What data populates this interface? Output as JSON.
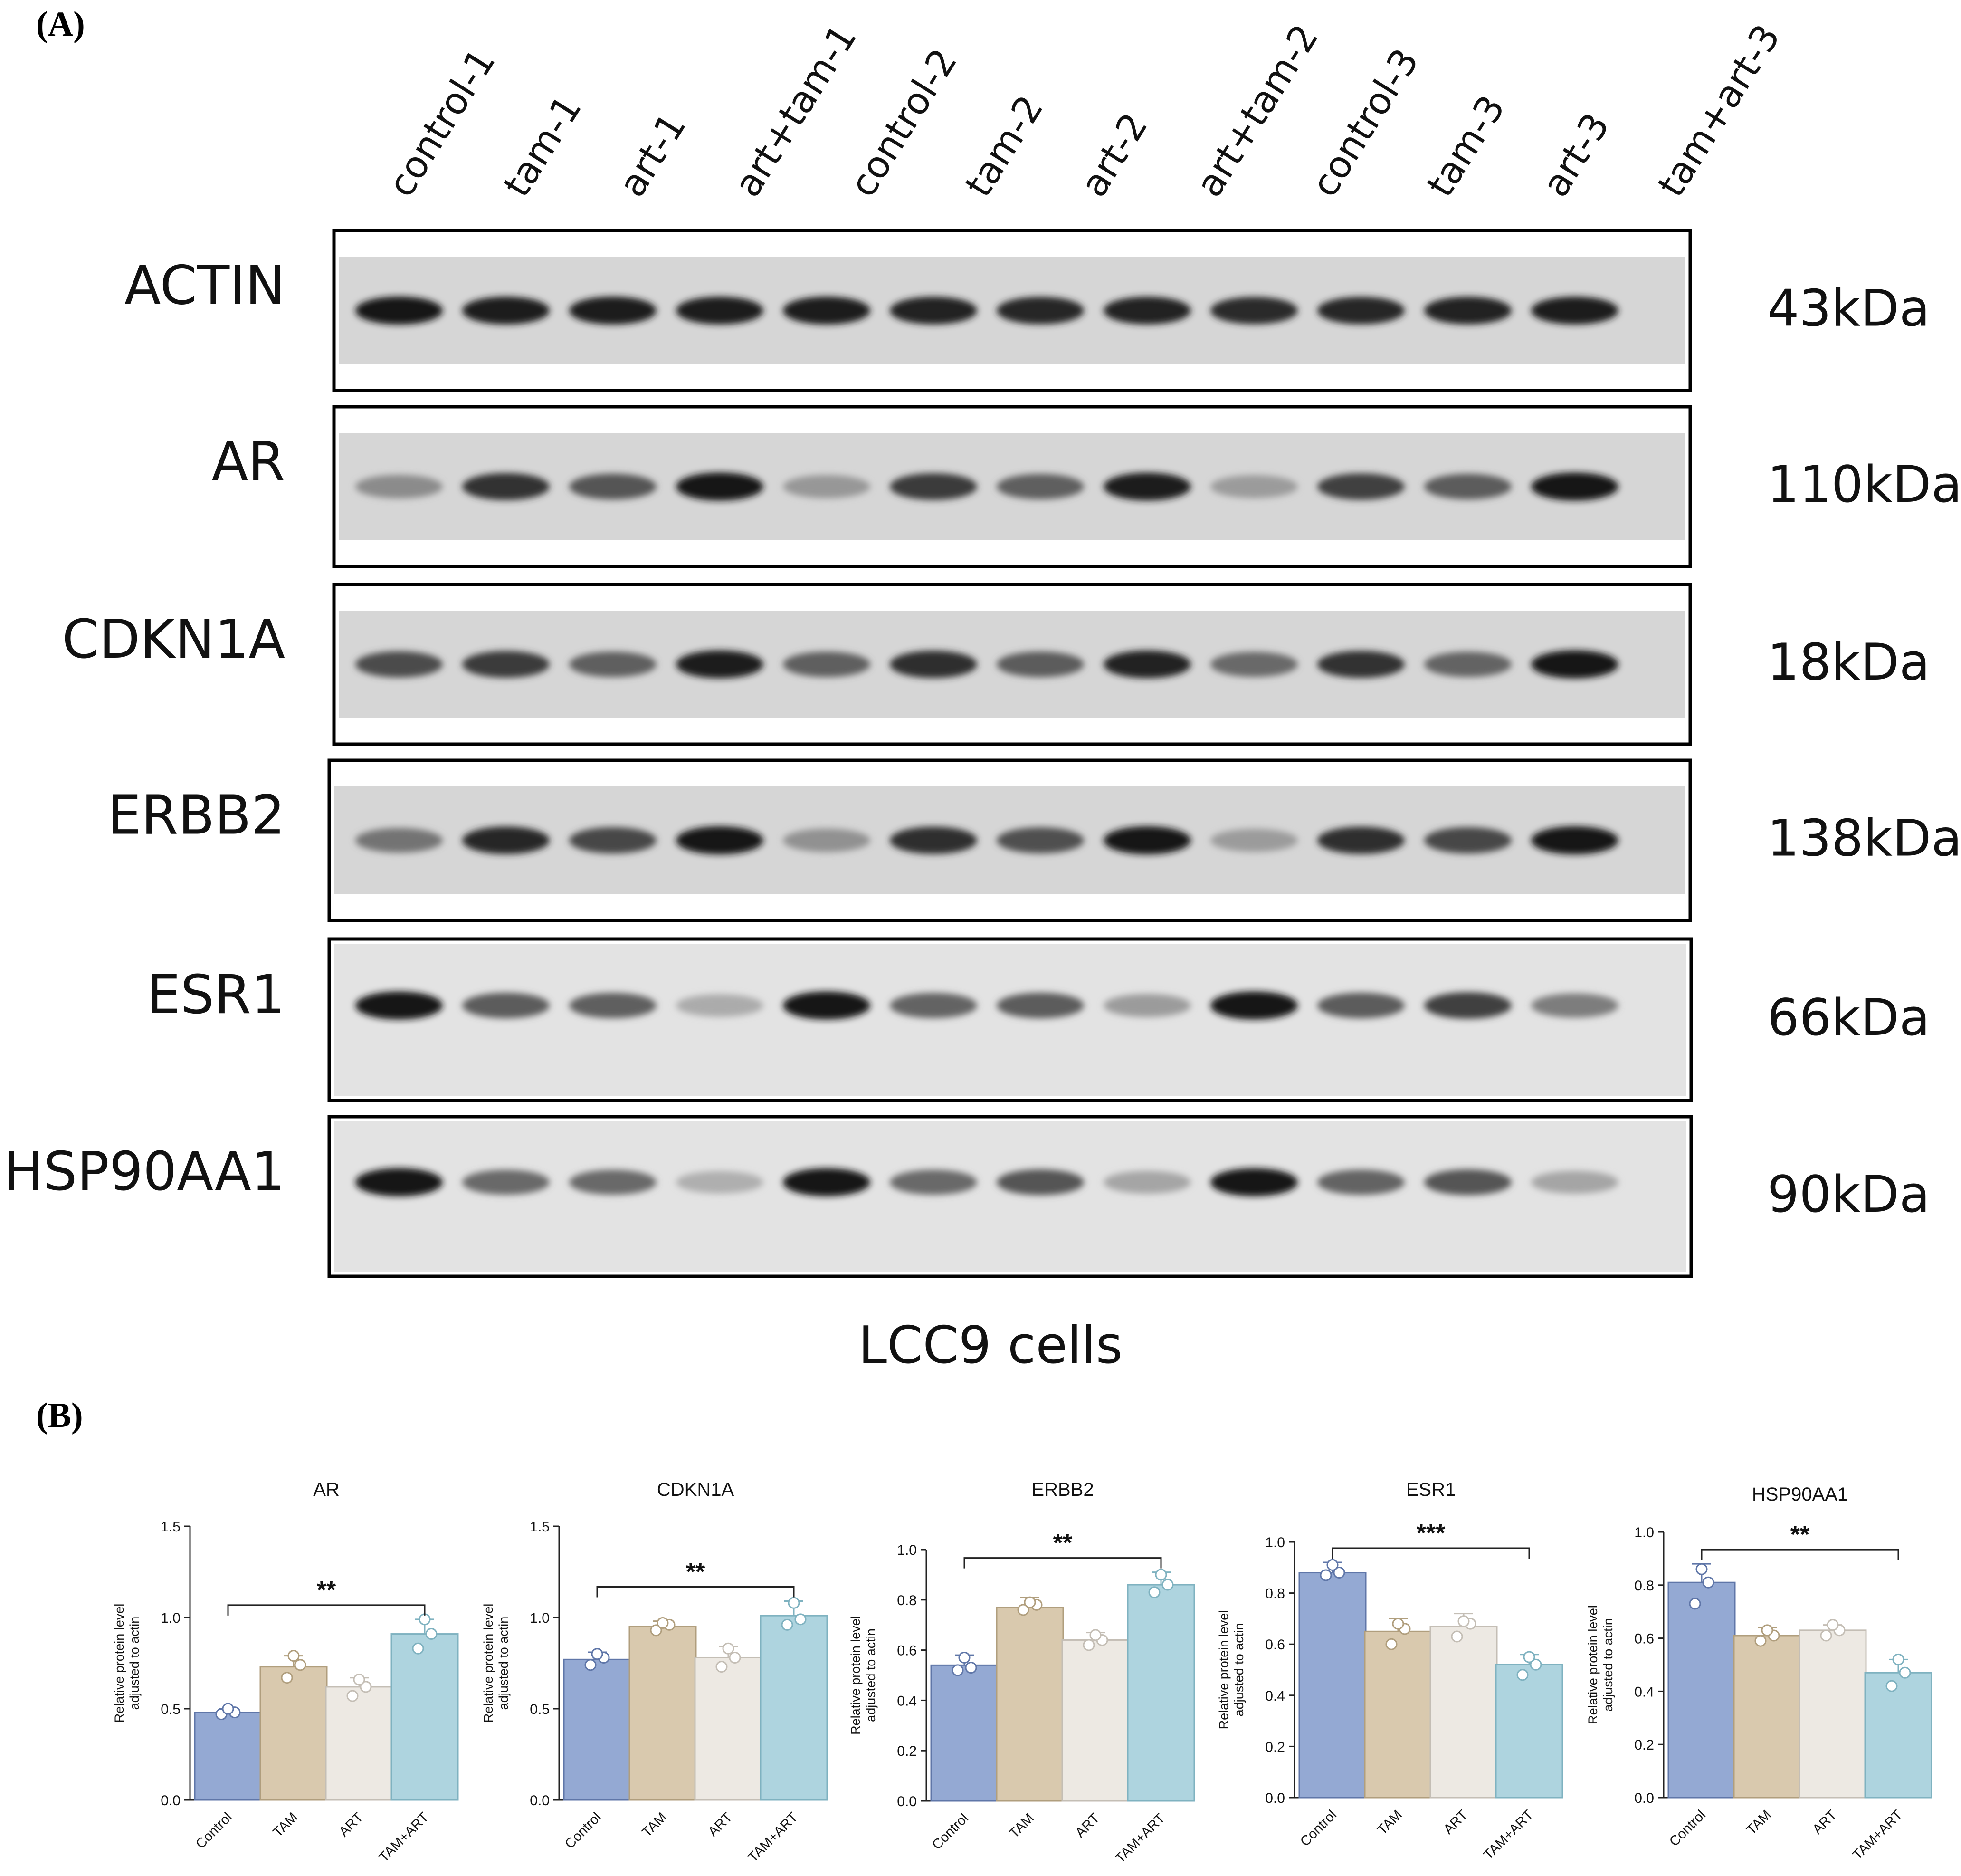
{
  "panel_a": {
    "label": "(A)",
    "lanes": [
      "control-1",
      "tam-1",
      "art-1",
      "art+tam-1",
      "control-2",
      "tam-2",
      "art-2",
      "art+tam-2",
      "control-3",
      "tam-3",
      "art-3",
      "tam+art-3"
    ],
    "caption": "LCC9 cells",
    "blots": [
      {
        "protein": "ACTIN",
        "size": "43kDa",
        "intensity": [
          0.95,
          0.92,
          0.94,
          0.92,
          0.93,
          0.9,
          0.88,
          0.9,
          0.86,
          0.88,
          0.9,
          0.92
        ]
      },
      {
        "protein": "AR",
        "size": "110kDa",
        "intensity": [
          0.38,
          0.82,
          0.65,
          0.95,
          0.32,
          0.78,
          0.6,
          0.92,
          0.3,
          0.75,
          0.62,
          0.95
        ]
      },
      {
        "protein": "CDKN1A",
        "size": "18kDa",
        "intensity": [
          0.7,
          0.78,
          0.6,
          0.92,
          0.6,
          0.85,
          0.62,
          0.9,
          0.55,
          0.82,
          0.58,
          0.95
        ]
      },
      {
        "protein": "ERBB2",
        "size": "138kDa",
        "intensity": [
          0.5,
          0.88,
          0.72,
          0.95,
          0.35,
          0.85,
          0.68,
          0.95,
          0.3,
          0.85,
          0.72,
          0.95
        ]
      },
      {
        "protein": "ESR1",
        "size": "66kDa",
        "intensity": [
          0.95,
          0.62,
          0.6,
          0.22,
          0.95,
          0.58,
          0.62,
          0.3,
          0.95,
          0.62,
          0.75,
          0.45
        ]
      },
      {
        "protein": "HSP90AA1",
        "size": "90kDa",
        "intensity": [
          0.98,
          0.55,
          0.55,
          0.2,
          0.95,
          0.55,
          0.65,
          0.25,
          0.95,
          0.58,
          0.65,
          0.25
        ]
      }
    ]
  },
  "panel_b": {
    "label": "(B)"
  },
  "chart_data": [
    {
      "type": "bar",
      "title": "AR",
      "categories": [
        "Control",
        "TAM",
        "ART",
        "TAM+ART"
      ],
      "values": [
        0.48,
        0.73,
        0.62,
        0.91
      ],
      "points": [
        [
          0.47,
          0.48,
          0.5
        ],
        [
          0.67,
          0.74,
          0.79
        ],
        [
          0.57,
          0.62,
          0.66
        ],
        [
          0.83,
          0.91,
          0.99
        ]
      ],
      "errors": [
        0.02,
        0.06,
        0.05,
        0.08
      ],
      "ylim": [
        0,
        1.5
      ],
      "yticks": [
        0.0,
        0.5,
        1.0,
        1.5
      ],
      "ylabel": [
        "Relative protein level",
        "adjusted to actin"
      ],
      "significance": "**",
      "colors": [
        "#94a9d3",
        "#d9c9ae",
        "#ede9e3",
        "#aed4df"
      ]
    },
    {
      "type": "bar",
      "title": "CDKN1A",
      "categories": [
        "Control",
        "TAM",
        "ART",
        "TAM+ART"
      ],
      "values": [
        0.77,
        0.95,
        0.78,
        1.01
      ],
      "points": [
        [
          0.74,
          0.78,
          0.8
        ],
        [
          0.93,
          0.96,
          0.97
        ],
        [
          0.73,
          0.78,
          0.83
        ],
        [
          0.96,
          0.99,
          1.08
        ]
      ],
      "errors": [
        0.04,
        0.03,
        0.06,
        0.08
      ],
      "ylim": [
        0,
        1.5
      ],
      "yticks": [
        0.0,
        0.5,
        1.0,
        1.5
      ],
      "ylabel": [
        "Relative protein level",
        "adjusted to actin"
      ],
      "significance": "**",
      "colors": [
        "#94a9d3",
        "#d9c9ae",
        "#ede9e3",
        "#aed4df"
      ]
    },
    {
      "type": "bar",
      "title": "ERBB2",
      "categories": [
        "Control",
        "TAM",
        "ART",
        "TAM+ART"
      ],
      "values": [
        0.54,
        0.77,
        0.64,
        0.86
      ],
      "points": [
        [
          0.52,
          0.53,
          0.57
        ],
        [
          0.76,
          0.78,
          0.79
        ],
        [
          0.62,
          0.64,
          0.66
        ],
        [
          0.83,
          0.86,
          0.9
        ]
      ],
      "errors": [
        0.04,
        0.04,
        0.03,
        0.05
      ],
      "ylim": [
        0,
        1.0
      ],
      "yticks": [
        0.0,
        0.2,
        0.4,
        0.6,
        0.8,
        1.0
      ],
      "ylabel": [
        "Relative protein level",
        "adjusted to actin"
      ],
      "significance": "**",
      "colors": [
        "#94a9d3",
        "#d9c9ae",
        "#ede9e3",
        "#aed4df"
      ]
    },
    {
      "type": "bar",
      "title": "ESR1",
      "categories": [
        "Control",
        "TAM",
        "ART",
        "TAM+ART"
      ],
      "values": [
        0.88,
        0.65,
        0.67,
        0.52
      ],
      "points": [
        [
          0.87,
          0.88,
          0.91
        ],
        [
          0.6,
          0.66,
          0.68
        ],
        [
          0.63,
          0.68,
          0.69
        ],
        [
          0.48,
          0.52,
          0.55
        ]
      ],
      "errors": [
        0.04,
        0.05,
        0.05,
        0.04
      ],
      "ylim": [
        0,
        1.0
      ],
      "yticks": [
        0.0,
        0.2,
        0.4,
        0.6,
        0.8,
        1.0
      ],
      "ylabel": [
        "Relative protein level",
        "adjusted to actin"
      ],
      "significance": "***",
      "colors": [
        "#94a9d3",
        "#d9c9ae",
        "#ede9e3",
        "#aed4df"
      ]
    },
    {
      "type": "bar",
      "title": "HSP90AA1",
      "categories": [
        "Control",
        "TAM",
        "ART",
        "TAM+ART"
      ],
      "values": [
        0.81,
        0.61,
        0.63,
        0.47
      ],
      "points": [
        [
          0.73,
          0.81,
          0.86
        ],
        [
          0.59,
          0.61,
          0.63
        ],
        [
          0.61,
          0.63,
          0.65
        ],
        [
          0.42,
          0.47,
          0.52
        ]
      ],
      "errors": [
        0.07,
        0.03,
        0.02,
        0.05
      ],
      "ylim": [
        0,
        1.0
      ],
      "yticks": [
        0.0,
        0.2,
        0.4,
        0.6,
        0.8,
        1.0
      ],
      "ylabel": [
        "Relative protein level",
        "adjusted to actin"
      ],
      "significance": "**",
      "colors": [
        "#94a9d3",
        "#d9c9ae",
        "#ede9e3",
        "#aed4df"
      ]
    }
  ]
}
